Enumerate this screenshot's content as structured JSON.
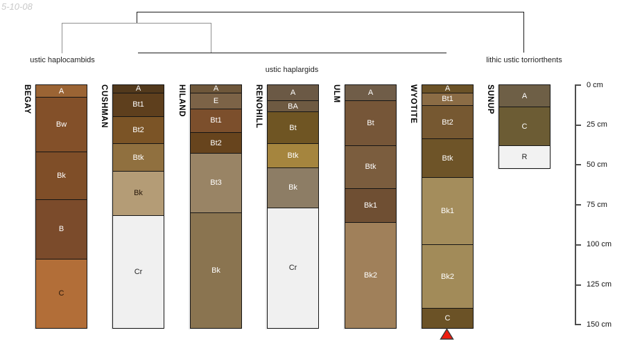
{
  "watermark": "5-10-08",
  "dendrogram": {
    "groups": [
      {
        "label": "ustic haplocambids"
      },
      {
        "label": "ustic haplargids"
      },
      {
        "label": "lithic ustic torriorthents"
      }
    ]
  },
  "depth_scale": {
    "unit": "cm",
    "ticks": [
      "0 cm",
      "25 cm",
      "50 cm",
      "75 cm",
      "100 cm",
      "125 cm",
      "150 cm"
    ]
  },
  "marker": {
    "shape": "triangle-up",
    "color": "#ee1c0e",
    "points_to_column": "WYOTITE"
  },
  "columns": [
    {
      "name": "BEGAY",
      "group": "ustic haplocambids",
      "horizons": [
        {
          "label": "A",
          "top_cm": 0,
          "bottom_cm": 8,
          "color": "#9b6434",
          "text": "#ffffff"
        },
        {
          "label": "Bw",
          "top_cm": 8,
          "bottom_cm": 42,
          "color": "#835029",
          "text": "#ffffff"
        },
        {
          "label": "Bk",
          "top_cm": 42,
          "bottom_cm": 72,
          "color": "#7f4e28",
          "text": "#ffffff"
        },
        {
          "label": "B",
          "top_cm": 72,
          "bottom_cm": 109,
          "color": "#7b4b2b",
          "text": "#ffffff"
        },
        {
          "label": "C",
          "top_cm": 109,
          "bottom_cm": 152,
          "color": "#b26e38",
          "text": "#26170a"
        }
      ]
    },
    {
      "name": "CUSHMAN",
      "group": "ustic haplargids",
      "horizons": [
        {
          "label": "A",
          "top_cm": 0,
          "bottom_cm": 5,
          "color": "#52391c",
          "text": "#ffffff"
        },
        {
          "label": "Bt1",
          "top_cm": 5,
          "bottom_cm": 20,
          "color": "#5e3f1d",
          "text": "#ffffff"
        },
        {
          "label": "Bt2",
          "top_cm": 20,
          "bottom_cm": 37,
          "color": "#7b5426",
          "text": "#ffffff"
        },
        {
          "label": "Btk",
          "top_cm": 37,
          "bottom_cm": 54,
          "color": "#90703f",
          "text": "#ffffff"
        },
        {
          "label": "Bk",
          "top_cm": 54,
          "bottom_cm": 82,
          "color": "#b49c76",
          "text": "#26170a"
        },
        {
          "label": "Cr",
          "top_cm": 82,
          "bottom_cm": 152,
          "color": "#f0f0f0",
          "text": "#262626"
        }
      ]
    },
    {
      "name": "HILAND",
      "group": "ustic haplargids",
      "horizons": [
        {
          "label": "A",
          "top_cm": 0,
          "bottom_cm": 5,
          "color": "#6e573a",
          "text": "#ffffff"
        },
        {
          "label": "E",
          "top_cm": 5,
          "bottom_cm": 15,
          "color": "#7c6347",
          "text": "#ffffff"
        },
        {
          "label": "Bt1",
          "top_cm": 15,
          "bottom_cm": 30,
          "color": "#7c4f2c",
          "text": "#ffffff"
        },
        {
          "label": "Bt2",
          "top_cm": 30,
          "bottom_cm": 43,
          "color": "#67441d",
          "text": "#ffffff"
        },
        {
          "label": "Bt3",
          "top_cm": 43,
          "bottom_cm": 80,
          "color": "#998465",
          "text": "#ffffff"
        },
        {
          "label": "Bk",
          "top_cm": 80,
          "bottom_cm": 152,
          "color": "#8a7450",
          "text": "#ffffff"
        }
      ]
    },
    {
      "name": "RENOHILL",
      "group": "ustic haplargids",
      "horizons": [
        {
          "label": "A",
          "top_cm": 0,
          "bottom_cm": 10,
          "color": "#6b5945",
          "text": "#ffffff"
        },
        {
          "label": "BA",
          "top_cm": 10,
          "bottom_cm": 17,
          "color": "#6e5a42",
          "text": "#ffffff"
        },
        {
          "label": "Bt",
          "top_cm": 17,
          "bottom_cm": 37,
          "color": "#6f5523",
          "text": "#ffffff"
        },
        {
          "label": "Btk",
          "top_cm": 37,
          "bottom_cm": 52,
          "color": "#a5853e",
          "text": "#ffffff"
        },
        {
          "label": "Bk",
          "top_cm": 52,
          "bottom_cm": 77,
          "color": "#8d7d65",
          "text": "#ffffff"
        },
        {
          "label": "Cr",
          "top_cm": 77,
          "bottom_cm": 152,
          "color": "#f0f0f0",
          "text": "#262626"
        }
      ]
    },
    {
      "name": "ULM",
      "group": "ustic haplargids",
      "horizons": [
        {
          "label": "A",
          "top_cm": 0,
          "bottom_cm": 10,
          "color": "#705d48",
          "text": "#ffffff"
        },
        {
          "label": "Bt",
          "top_cm": 10,
          "bottom_cm": 38,
          "color": "#765638",
          "text": "#ffffff"
        },
        {
          "label": "Btk",
          "top_cm": 38,
          "bottom_cm": 65,
          "color": "#7b5d3e",
          "text": "#ffffff"
        },
        {
          "label": "Bk1",
          "top_cm": 65,
          "bottom_cm": 86,
          "color": "#6f4f33",
          "text": "#ffffff"
        },
        {
          "label": "Bk2",
          "top_cm": 86,
          "bottom_cm": 152,
          "color": "#a0805a",
          "text": "#ffffff"
        }
      ]
    },
    {
      "name": "WYOTITE",
      "group": "ustic haplargids",
      "horizons": [
        {
          "label": "A",
          "top_cm": 0,
          "bottom_cm": 5,
          "color": "#6b5227",
          "text": "#ffffff"
        },
        {
          "label": "Bt1",
          "top_cm": 5,
          "bottom_cm": 13,
          "color": "#8b6c45",
          "text": "#ffffff"
        },
        {
          "label": "Bt2",
          "top_cm": 13,
          "bottom_cm": 34,
          "color": "#765831",
          "text": "#ffffff"
        },
        {
          "label": "Btk",
          "top_cm": 34,
          "bottom_cm": 58,
          "color": "#6e5428",
          "text": "#ffffff"
        },
        {
          "label": "Bk1",
          "top_cm": 58,
          "bottom_cm": 100,
          "color": "#a48d5c",
          "text": "#ffffff"
        },
        {
          "label": "Bk2",
          "top_cm": 100,
          "bottom_cm": 140,
          "color": "#a28b59",
          "text": "#ffffff"
        },
        {
          "label": "C",
          "top_cm": 140,
          "bottom_cm": 152,
          "color": "#6b5226",
          "text": "#ffffff"
        }
      ]
    },
    {
      "name": "SUNUP",
      "group": "lithic ustic torriorthents",
      "horizons": [
        {
          "label": "A",
          "top_cm": 0,
          "bottom_cm": 14,
          "color": "#6e5f46",
          "text": "#ffffff"
        },
        {
          "label": "C",
          "top_cm": 14,
          "bottom_cm": 38,
          "color": "#6c5c34",
          "text": "#ffffff"
        },
        {
          "label": "R",
          "top_cm": 38,
          "bottom_cm": 52,
          "color": "#f2f2f2",
          "text": "#262626"
        }
      ]
    }
  ]
}
